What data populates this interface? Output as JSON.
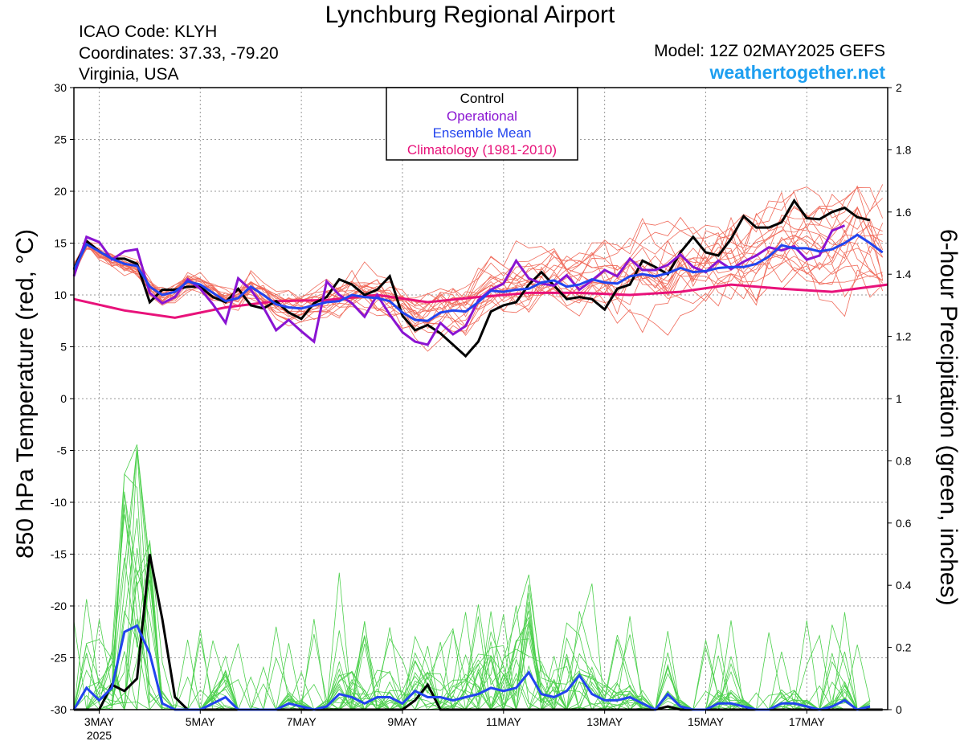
{
  "header": {
    "title": "Lynchburg Regional Airport",
    "icao": "ICAO Code: KLYH",
    "coordinates": "Coordinates: 37.33, -79.20",
    "region": "Virginia, USA",
    "model": "Model: 12Z 02MAY2025 GEFS",
    "site": "weathertogether.net"
  },
  "legend": {
    "control": "Control",
    "operational": "Operational",
    "ensemble_mean": "Ensemble Mean",
    "climatology": "Climatology (1981-2010)"
  },
  "colors": {
    "control": "#000000",
    "operational": "#8a14d2",
    "ensemble_mean": "#2244ee",
    "climatology": "#e8127a",
    "members_temp": "#f06a5a",
    "members_precip": "#4cd04c",
    "site": "#1e9ff0"
  },
  "chart_data": {
    "type": "line",
    "xlabel": "",
    "ylabel_left": "850 hPa Temperature (red, °C)",
    "ylabel_right": "6-hour Precipitation (green, inches)",
    "x_unit": "days since 3MAY 00Z",
    "xlim": [
      -0.5,
      15.6
    ],
    "ylim_left": [
      -30,
      30
    ],
    "ylim_right": [
      0,
      2
    ],
    "yticks_left": [
      30,
      25,
      20,
      15,
      10,
      5,
      0,
      -5,
      -10,
      -15,
      -20,
      -25,
      -30
    ],
    "yticks_right": [
      2,
      1.8,
      1.6,
      1.4,
      1.2,
      1,
      0.8,
      0.6,
      0.4,
      0.2,
      0
    ],
    "xticks": [
      {
        "x": 0,
        "label": "3MAY",
        "sub": "2025"
      },
      {
        "x": 2,
        "label": "5MAY"
      },
      {
        "x": 4,
        "label": "7MAY"
      },
      {
        "x": 6,
        "label": "9MAY"
      },
      {
        "x": 8,
        "label": "11MAY"
      },
      {
        "x": 10,
        "label": "13MAY"
      },
      {
        "x": 12,
        "label": "15MAY"
      },
      {
        "x": 14,
        "label": "17MAY"
      }
    ],
    "gridlines": true,
    "temperature": {
      "climatology": [
        [
          -0.5,
          9.6
        ],
        [
          0.5,
          8.5
        ],
        [
          1.5,
          7.8
        ],
        [
          2.5,
          8.8
        ],
        [
          3.5,
          9.4
        ],
        [
          4.5,
          9.5
        ],
        [
          5.5,
          10.0
        ],
        [
          6.5,
          9.3
        ],
        [
          7.5,
          9.8
        ],
        [
          8.5,
          10.2
        ],
        [
          9.5,
          10.2
        ],
        [
          10.5,
          10.0
        ],
        [
          11.5,
          10.3
        ],
        [
          12.5,
          11.0
        ],
        [
          13.5,
          10.6
        ],
        [
          14.5,
          10.3
        ],
        [
          15.6,
          11.0
        ]
      ],
      "control": [
        -0.5,
        12.5,
        15.2,
        14.2,
        13.5,
        13.5,
        13.0,
        9.3,
        10.5,
        10.5,
        10.8,
        10.8,
        9.8,
        9.3,
        10.6,
        9.0,
        8.7,
        9.4,
        8.3,
        7.7,
        9.2,
        9.8,
        11.5,
        11.0,
        10.0,
        10.5,
        11.8,
        8.0,
        6.6,
        7.1,
        6.3,
        5.2,
        4.1,
        5.5,
        8.4,
        9.0,
        9.3,
        11.0,
        12.2,
        10.9,
        9.6,
        9.8,
        9.6,
        8.6,
        10.6,
        11.0,
        13.3,
        12.7,
        12.0,
        14.1,
        15.6,
        14.1,
        13.8,
        15.4,
        17.6,
        16.5,
        16.5,
        17.0,
        19.1,
        17.4,
        17.3,
        18.0,
        18.4,
        17.5,
        17.2
      ],
      "operational": [
        -0.5,
        11.8,
        15.6,
        15.1,
        13.4,
        14.2,
        14.4,
        10.2,
        9.2,
        9.8,
        11.5,
        10.6,
        9.1,
        7.3,
        11.6,
        10.5,
        8.8,
        6.6,
        7.6,
        6.5,
        5.5,
        11.3,
        10.0,
        9.2,
        7.9,
        10.0,
        8.1,
        6.4,
        5.5,
        5.2,
        7.3,
        6.2,
        7.0,
        9.5,
        10.5,
        11.1,
        13.3,
        11.6,
        11.1,
        10.9,
        11.9,
        10.5,
        11.4,
        12.4,
        11.8,
        13.5,
        12.4,
        12.4,
        12.9,
        13.9,
        12.7,
        12.2,
        13.3,
        12.5,
        13.2,
        13.8,
        14.6,
        14.3,
        14.7,
        13.4,
        13.8,
        16.2,
        16.7
      ],
      "ensemble_mean": [
        -0.5,
        12.4,
        14.9,
        14.2,
        13.5,
        13.0,
        12.8,
        10.8,
        10.0,
        10.3,
        11.3,
        11.0,
        10.2,
        9.4,
        9.7,
        10.8,
        10.0,
        9.1,
        8.8,
        8.7,
        9.0,
        9.3,
        9.4,
        10.0,
        9.8,
        9.7,
        9.4,
        8.3,
        7.6,
        7.5,
        8.3,
        8.5,
        8.4,
        9.3,
        10.4,
        10.3,
        10.5,
        10.6,
        11.2,
        11.4,
        10.8,
        11.0,
        11.5,
        11.2,
        11.1,
        11.8,
        12.0,
        11.8,
        12.1,
        12.6,
        12.2,
        12.3,
        12.6,
        12.7,
        12.7,
        13.0,
        13.7,
        14.8,
        14.5,
        14.5,
        14.2,
        14.4,
        15.0,
        15.8,
        15.0,
        14.1
      ]
    },
    "precipitation": {
      "control": [
        -0.5,
        0.0,
        0.0,
        0.0,
        0.08,
        0.06,
        0.1,
        0.5,
        0.29,
        0.04,
        0.0,
        0.0,
        0.0,
        0.0,
        0.0,
        0.0,
        0.0,
        0.0,
        0.0,
        0.0,
        0.0,
        0.0,
        0.0,
        0.0,
        0.0,
        0.0,
        0.0,
        0.0,
        0.03,
        0.08,
        0.0,
        0.0,
        0.0,
        0.0,
        0.0,
        0.0,
        0.0,
        0.0,
        0.0,
        0.0,
        0.0,
        0.0,
        0.0,
        0.0,
        0.0,
        0.0,
        0.0,
        0.0,
        0.01,
        0.0,
        0.0,
        0.0,
        0.0,
        0.0,
        0.0,
        0.0,
        0.0,
        0.0,
        0.0,
        0.0,
        0.0,
        0.0,
        0.0,
        0.0,
        0.0,
        0.0
      ],
      "ensemble_mean": [
        -0.5,
        0.0,
        0.07,
        0.03,
        0.07,
        0.25,
        0.27,
        0.18,
        0.02,
        0.0,
        0.0,
        0.0,
        0.02,
        0.04,
        0.0,
        0.0,
        0.0,
        0.0,
        0.02,
        0.01,
        0.0,
        0.01,
        0.05,
        0.04,
        0.02,
        0.04,
        0.04,
        0.02,
        0.06,
        0.04,
        0.04,
        0.03,
        0.04,
        0.05,
        0.07,
        0.06,
        0.07,
        0.12,
        0.05,
        0.04,
        0.06,
        0.11,
        0.05,
        0.03,
        0.03,
        0.04,
        0.02,
        0.0,
        0.05,
        0.01,
        0.0,
        0.0,
        0.02,
        0.02,
        0.01,
        0.0,
        0.0,
        0.02,
        0.02,
        0.01,
        0.0,
        0.01,
        0.03,
        0.0,
        0.01
      ]
    }
  }
}
